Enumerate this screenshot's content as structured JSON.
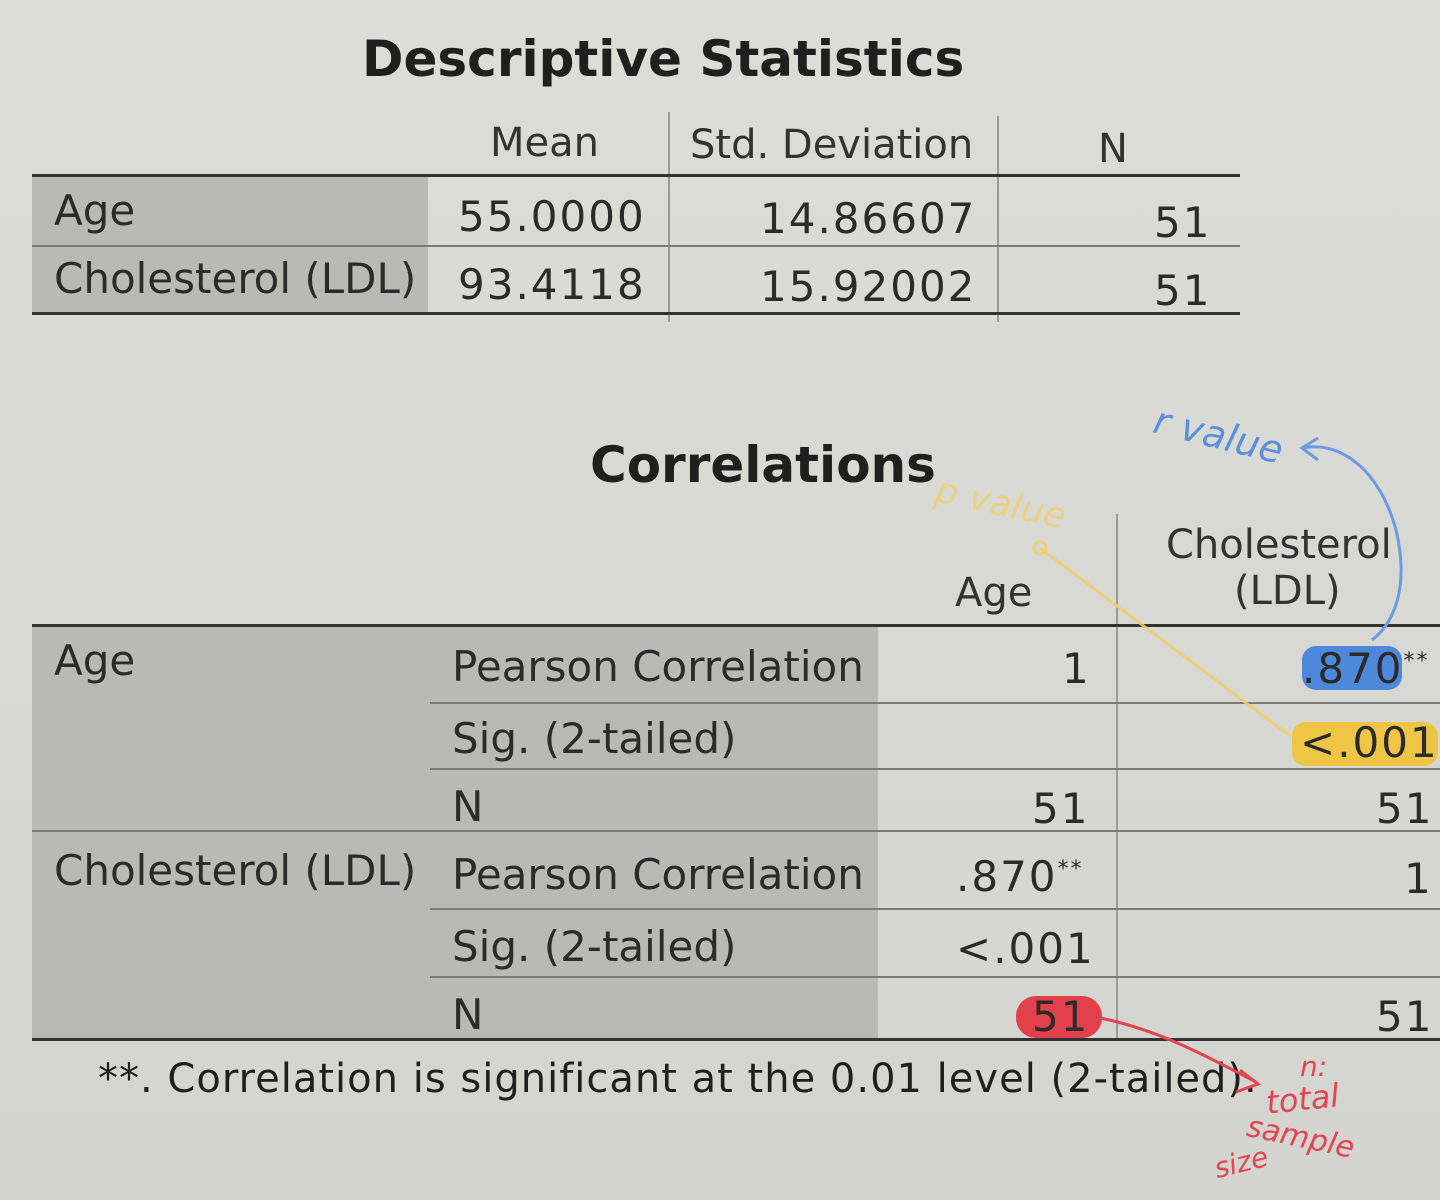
{
  "descriptive": {
    "title": "Descriptive Statistics",
    "headers": [
      "Mean",
      "Std. Deviation",
      "N"
    ],
    "rows": [
      {
        "label": "Age",
        "mean": "55.0000",
        "sd": "14.86607",
        "n": "51"
      },
      {
        "label": "Cholesterol (LDL)",
        "mean": "93.4118",
        "sd": "15.92002",
        "n": "51"
      }
    ]
  },
  "correlations": {
    "title": "Correlations",
    "col_headers": {
      "age": "Age",
      "chol_line1": "Cholesterol",
      "chol_line2": "(LDL)"
    },
    "groups": [
      {
        "label": "Age",
        "rows": [
          {
            "stat": "Pearson Correlation",
            "age": "1",
            "chol": ".870",
            "chol_sup": "**"
          },
          {
            "stat": "Sig. (2-tailed)",
            "age": "",
            "chol": "<.001"
          },
          {
            "stat": "N",
            "age": "51",
            "chol": "51"
          }
        ]
      },
      {
        "label": "Cholesterol (LDL)",
        "rows": [
          {
            "stat": "Pearson Correlation",
            "age": ".870",
            "age_sup": "**",
            "chol": "1"
          },
          {
            "stat": "Sig. (2-tailed)",
            "age": "<.001",
            "chol": ""
          },
          {
            "stat": "N",
            "age": "51",
            "chol": "51"
          }
        ]
      }
    ],
    "footnote": "**. Correlation is significant at the 0.01 level (2-tailed)."
  },
  "annotations": {
    "r_value": "r value",
    "p_value": "p value",
    "n_line1": "n:",
    "n_line2": "total",
    "n_line3": "sample",
    "n_line4": "size",
    "colors": {
      "r_value": "#5b8fe0",
      "p_value": "#f0c94a",
      "n": "#e3454f"
    }
  }
}
